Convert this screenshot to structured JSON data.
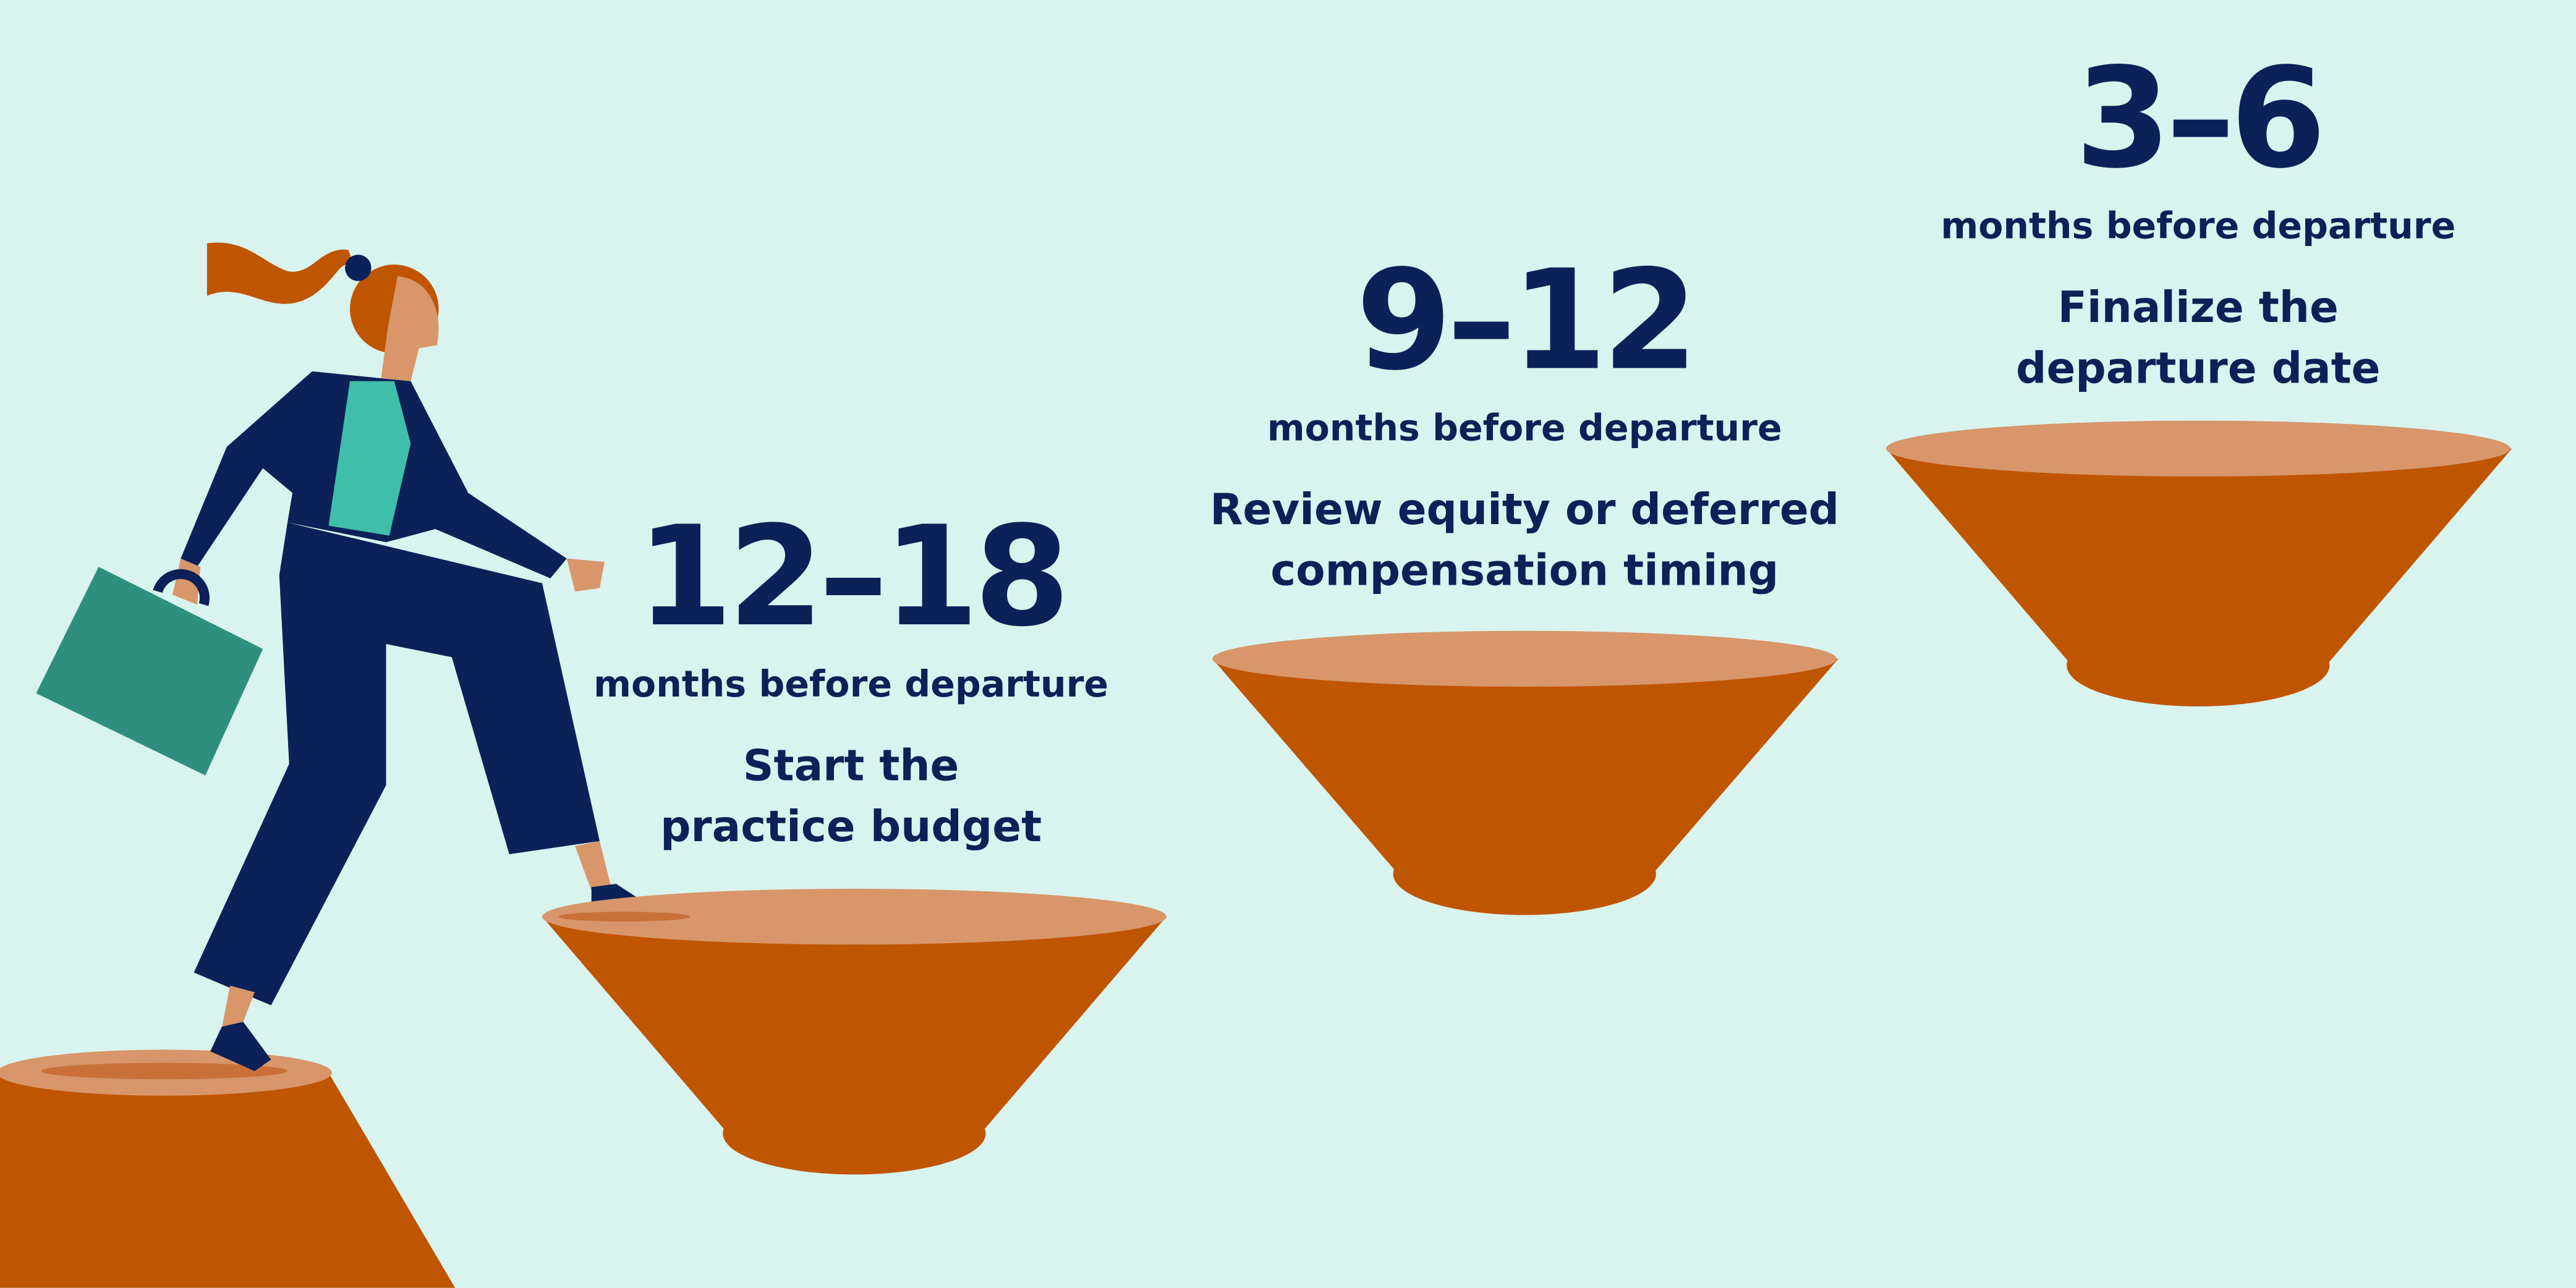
{
  "steps": [
    {
      "range": "12–18",
      "unit": "months before departure",
      "action": [
        "Start the",
        "practice budget"
      ]
    },
    {
      "range": "9–12",
      "unit": "months before departure",
      "action": [
        "Review equity or deferred",
        "compensation timing"
      ]
    },
    {
      "range": "3–6",
      "unit": "months before departure",
      "action": [
        "Finalize the",
        "departure date"
      ]
    }
  ]
}
